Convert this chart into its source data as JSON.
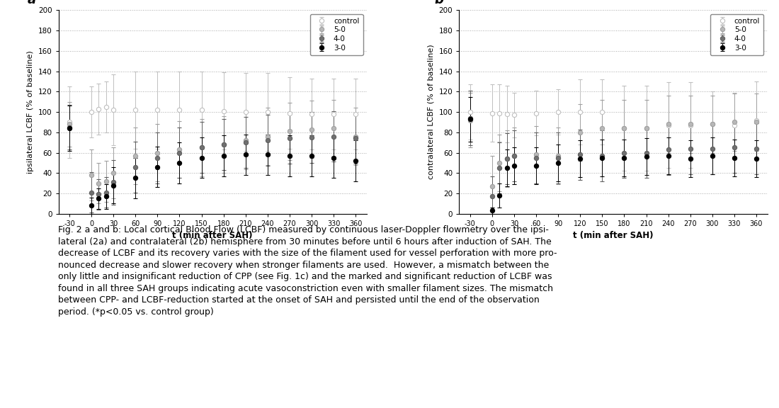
{
  "x_ticks": [
    -30,
    0,
    30,
    60,
    90,
    120,
    150,
    180,
    210,
    240,
    270,
    300,
    330,
    360
  ],
  "x_values": [
    -30,
    0,
    10,
    20,
    30,
    60,
    90,
    120,
    150,
    180,
    210,
    240,
    270,
    300,
    330,
    360
  ],
  "ipsi_control_mean": [
    90,
    100,
    103,
    105,
    102,
    102,
    102,
    102,
    102,
    101,
    100,
    100,
    99,
    98,
    98,
    98
  ],
  "ipsi_control_err": [
    35,
    25,
    25,
    25,
    35,
    38,
    38,
    38,
    38,
    38,
    38,
    38,
    35,
    35,
    35,
    35
  ],
  "ipsi_50_mean": [
    88,
    38,
    30,
    32,
    40,
    57,
    60,
    63,
    65,
    68,
    72,
    76,
    81,
    83,
    84,
    76
  ],
  "ipsi_50_err": [
    22,
    25,
    20,
    20,
    25,
    28,
    28,
    28,
    28,
    28,
    28,
    28,
    28,
    28,
    28,
    28
  ],
  "ipsi_40_mean": [
    85,
    21,
    19,
    21,
    31,
    46,
    55,
    60,
    65,
    68,
    70,
    72,
    74,
    75,
    76,
    74
  ],
  "ipsi_40_err": [
    22,
    20,
    15,
    15,
    22,
    25,
    25,
    25,
    25,
    25,
    25,
    25,
    25,
    25,
    25,
    25
  ],
  "ipsi_30_mean": [
    84,
    8,
    15,
    17,
    28,
    35,
    46,
    50,
    55,
    57,
    58,
    58,
    57,
    57,
    55,
    52
  ],
  "ipsi_30_err": [
    22,
    8,
    10,
    12,
    18,
    20,
    20,
    20,
    20,
    20,
    20,
    20,
    20,
    20,
    20,
    20
  ],
  "contra_control_mean": [
    100,
    99,
    99,
    98,
    97,
    99,
    100,
    100,
    100,
    84,
    84,
    87,
    87,
    88,
    87,
    92
  ],
  "contra_control_err": [
    27,
    28,
    28,
    28,
    22,
    22,
    22,
    32,
    32,
    42,
    42,
    42,
    42,
    32,
    32,
    38
  ],
  "contra_50_mean": [
    92,
    27,
    50,
    54,
    57,
    58,
    57,
    80,
    84,
    84,
    84,
    88,
    88,
    88,
    90,
    90
  ],
  "contra_50_err": [
    27,
    30,
    28,
    28,
    28,
    28,
    28,
    28,
    28,
    28,
    28,
    28,
    28,
    28,
    28,
    28
  ],
  "contra_40_mean": [
    94,
    17,
    45,
    54,
    57,
    55,
    55,
    58,
    57,
    60,
    60,
    63,
    64,
    64,
    65,
    64
  ],
  "contra_40_err": [
    27,
    20,
    25,
    25,
    25,
    25,
    25,
    25,
    25,
    25,
    25,
    25,
    25,
    25,
    25,
    25
  ],
  "contra_30_mean": [
    93,
    3,
    18,
    45,
    47,
    47,
    50,
    54,
    55,
    55,
    56,
    57,
    54,
    57,
    55,
    54
  ],
  "contra_30_err": [
    22,
    3,
    12,
    18,
    18,
    18,
    18,
    18,
    18,
    18,
    18,
    18,
    18,
    18,
    18,
    18
  ],
  "color_control": "#c0c0c0",
  "color_50": "#a0a0a0",
  "color_40": "#606060",
  "color_30": "#000000",
  "markerfacecolor_control": "#ffffff",
  "markerfacecolor_50": "#b8b8b8",
  "markerfacecolor_40": "#707070",
  "markerfacecolor_30": "#000000",
  "ylabel_ipsi": "ipsilateral LCBF (% of baseline)",
  "ylabel_contra": "contralateral LCBF (% of baseline)",
  "xlabel": "t (min after SAH)",
  "ylim": [
    0,
    200
  ],
  "yticks": [
    0,
    20,
    40,
    60,
    80,
    100,
    120,
    140,
    160,
    180,
    200
  ],
  "label_a": "a",
  "label_b": "b",
  "legend_labels": [
    "control",
    "5-0",
    "4-0",
    "3-0"
  ],
  "caption_bold": "Fig. 2",
  "caption_normal": " a and b: Local cortical Blood Flow (LCBF) measured by continuous laser-Doppler flowmetry over the ipsi-lateral (2a) and contralateral (2b) hemisphere from 30 minutes before until 6 hours after induction of SAH. The decrease of LCBF and its recovery varies with the size of the filament used for vessel perforation with more pro-nounced decrease and slower recovery when stronger filaments are used.  However, a mismatch between the only little and insignificant reduction of CPP (see Fig. 1c) and the marked and significant reduction of LCBF was found in all three SAH groups indicating acute vasoconstriction even with smaller filament sizes. The mismatch between CPP- and LCBF-reduction started at the onset of SAH and persisted until the end of the observation period. (*p<0.05 vs. control group)"
}
